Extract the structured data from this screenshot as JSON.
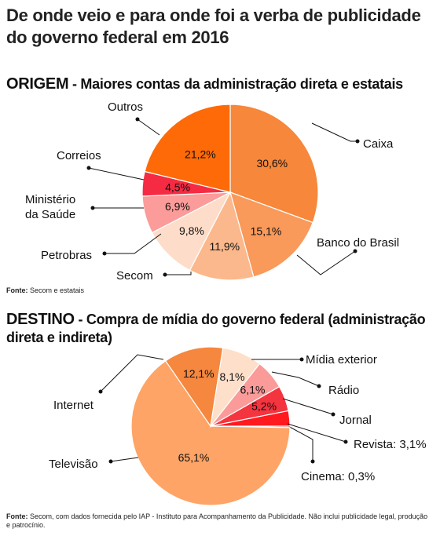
{
  "title": "De onde veio e para onde foi a verba de publicidade do governo federal em 2016",
  "origin": {
    "heading_key": "ORIGEM",
    "heading_rest": " - Maiores contas da administração direta e estatais",
    "source_label": "Fonte:",
    "source_text": "Secom e estatais"
  },
  "destination": {
    "heading_key": "DESTINO",
    "heading_rest": " - Compra de mídia do governo federal (administração direta e indireta)",
    "source_label": "Fonte:",
    "source_text": "Secom, com dados fornecida pelo IAP - Instituto para Acompanhamento da Publicidade. Não inclui publicidade legal, produção e patrocínio."
  },
  "chart_data": [
    {
      "type": "pie",
      "unit": "%",
      "slices": [
        {
          "label": "Caixa",
          "value": 30.6,
          "value_label": "30,6%",
          "color": "#f7873a"
        },
        {
          "label": "Banco do Brasil",
          "value": 15.1,
          "value_label": "15,1%",
          "color": "#f9995a"
        },
        {
          "label": "Secom",
          "value": 11.9,
          "value_label": "11,9%",
          "color": "#fbb88c"
        },
        {
          "label": "Petrobras",
          "value": 9.8,
          "value_label": "9,8%",
          "color": "#fdddc9"
        },
        {
          "label": "Ministério da Saúde",
          "value": 6.9,
          "value_label": "6,9%",
          "color": "#fb9c9a"
        },
        {
          "label": "Correios",
          "value": 4.5,
          "value_label": "4,5%",
          "color": "#f52b43"
        },
        {
          "label": "Outros",
          "value": 21.2,
          "value_label": "21,2%",
          "color": "#fe6a08"
        }
      ]
    },
    {
      "type": "pie",
      "unit": "%",
      "slices": [
        {
          "label": "Cinema: 0,3%",
          "value": 0.3,
          "value_label": "",
          "color": "#e32027"
        },
        {
          "label": "Televisão",
          "value": 65.1,
          "value_label": "65,1%",
          "color": "#fea466"
        },
        {
          "label": "Internet",
          "value": 12.1,
          "value_label": "12,1%",
          "color": "#f5873e"
        },
        {
          "label": "Mídia exterior",
          "value": 8.1,
          "value_label": "8,1%",
          "color": "#fedfc9"
        },
        {
          "label": "Rádio",
          "value": 6.1,
          "value_label": "6,1%",
          "color": "#fa9b99"
        },
        {
          "label": "Jornal",
          "value": 5.2,
          "value_label": "5,2%",
          "color": "#f4343f"
        },
        {
          "label": "Revista: 3,1%",
          "value": 3.1,
          "value_label": "",
          "color": "#ff1a1f"
        }
      ]
    }
  ]
}
